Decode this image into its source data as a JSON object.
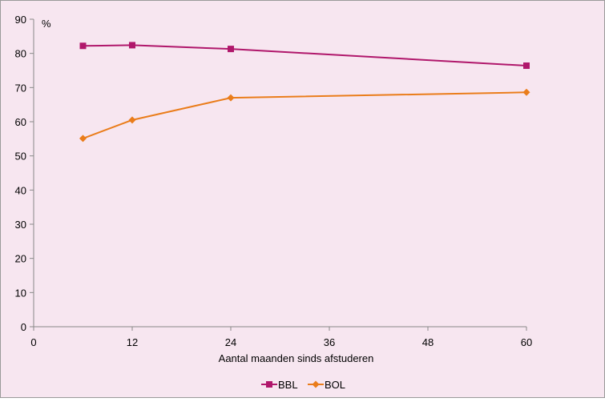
{
  "chart_data": {
    "type": "line",
    "title": "",
    "xlabel": "Aantal maanden sinds afstuderen",
    "ylabel": "%",
    "xlim": [
      0,
      60
    ],
    "ylim": [
      0,
      90
    ],
    "x_ticks": [
      0,
      12,
      24,
      36,
      48,
      60
    ],
    "y_ticks": [
      0,
      10,
      20,
      30,
      40,
      50,
      60,
      70,
      80,
      90
    ],
    "grid": false,
    "legend_position": "bottom",
    "background_color": "#f7e6f0",
    "series": [
      {
        "name": "BBL",
        "color": "#b0176b",
        "marker": "square",
        "x": [
          6,
          12,
          24,
          60
        ],
        "y": [
          82.2,
          82.4,
          81.3,
          76.4
        ]
      },
      {
        "name": "BOL",
        "color": "#ea7d1b",
        "marker": "diamond",
        "x": [
          6,
          12,
          24,
          60
        ],
        "y": [
          55.1,
          60.5,
          67.0,
          68.6
        ]
      }
    ]
  }
}
